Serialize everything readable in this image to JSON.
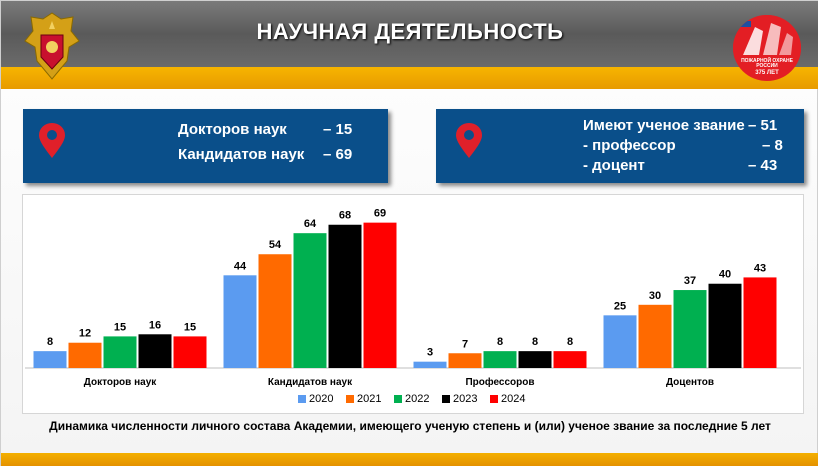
{
  "header": {
    "title": "НАУЧНАЯ ДЕЯТЕЛЬНОСТЬ",
    "badge_line1": "ПОЖАРНОЙ ОХРАНЕ РОССИИ",
    "badge_line2": "375 ЛЕТ"
  },
  "box_left": {
    "rows": [
      {
        "label": "Докторов наук",
        "value": "–  15"
      },
      {
        "label": "Кандидатов наук",
        "value": "–  69"
      }
    ]
  },
  "box_right": {
    "rows": [
      {
        "label": "Имеют ученое звание",
        "value": "– 51"
      },
      {
        "label": "- профессор",
        "value": "– 8"
      },
      {
        "label": "- доцент",
        "value": "– 43"
      }
    ]
  },
  "colors": {
    "2020": "#5b9bf0",
    "2021": "#ff6a00",
    "2022": "#00b050",
    "2023": "#000000",
    "2024": "#ff0000",
    "box": "#0a4f8a",
    "accent": "#f4a800"
  },
  "chart_data": {
    "type": "bar",
    "categories": [
      "Докторов  наук",
      "Кандидатов  наук",
      "Профессоров",
      "Доцентов"
    ],
    "series": [
      {
        "name": "2020",
        "values": [
          8,
          44,
          3,
          25
        ]
      },
      {
        "name": "2021",
        "values": [
          12,
          54,
          7,
          30
        ]
      },
      {
        "name": "2022",
        "values": [
          15,
          64,
          8,
          37
        ]
      },
      {
        "name": "2023",
        "values": [
          16,
          68,
          8,
          40
        ]
      },
      {
        "name": "2024",
        "values": [
          15,
          69,
          8,
          43
        ]
      }
    ],
    "ylim": [
      0,
      75
    ],
    "grid": false,
    "legend": "bottom",
    "data_labels": true
  },
  "caption": "Динамика численности личного состава Академии, имеющего ученую степень и (или) ученое звание за последние 5 лет"
}
